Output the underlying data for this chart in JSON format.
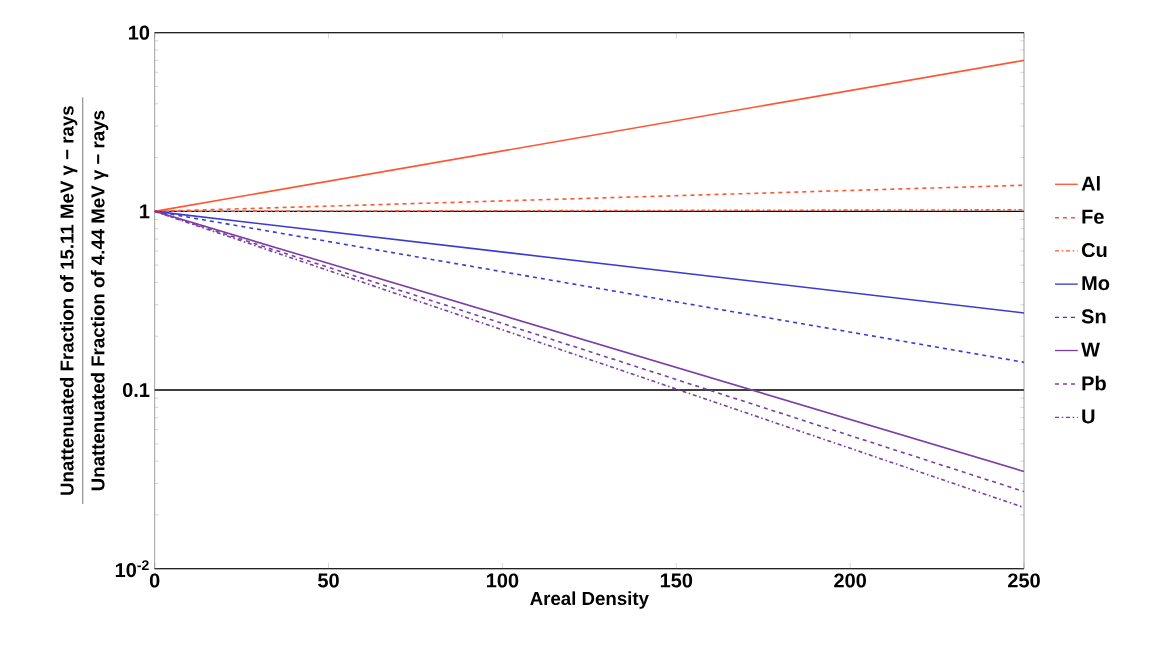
{
  "chart_data": {
    "type": "line",
    "xlabel": "Areal Density",
    "ylabel": "Unattenuated Fraction of 15.11 MeV γ − rays",
    "annotations": [
      "Unattenuated Fraction of 4.44 MeV γ − rays"
    ],
    "x": [
      0,
      250
    ],
    "series": [
      {
        "name": "Al",
        "color": "#ff5533",
        "line_style": "solid",
        "values": [
          1,
          7.0
        ]
      },
      {
        "name": "Fe",
        "color": "#ff5533",
        "line_style": "dashed",
        "values": [
          1,
          1.4
        ]
      },
      {
        "name": "Cu",
        "color": "#ff5533",
        "line_style": "dashdot",
        "values": [
          1,
          1.02
        ]
      },
      {
        "name": "Mo",
        "color": "#3b3bd4",
        "line_style": "solid",
        "values": [
          1,
          0.27
        ]
      },
      {
        "name": "Sn",
        "color": "#3b3bd4",
        "line_style": "dashed",
        "values": [
          1,
          0.143
        ]
      },
      {
        "name": "W",
        "color": "#7b3fa6",
        "line_style": "solid",
        "values": [
          1,
          0.035
        ]
      },
      {
        "name": "Pb",
        "color": "#7b3fa6",
        "line_style": "dashed",
        "values": [
          1,
          0.027
        ]
      },
      {
        "name": "U",
        "color": "#7b3fa6",
        "line_style": "dashdot",
        "values": [
          1,
          0.022
        ]
      }
    ],
    "xlim": [
      0,
      250
    ],
    "xticks": [
      0,
      50,
      100,
      150,
      200,
      250
    ],
    "ylim": [
      0.01,
      10
    ],
    "yticks": [
      {
        "value": 0.01,
        "label": "10$^{-2}$"
      },
      0.1,
      1,
      10
    ],
    "log": "y",
    "grid": "y",
    "legend": "right",
    "marker": "none"
  }
}
